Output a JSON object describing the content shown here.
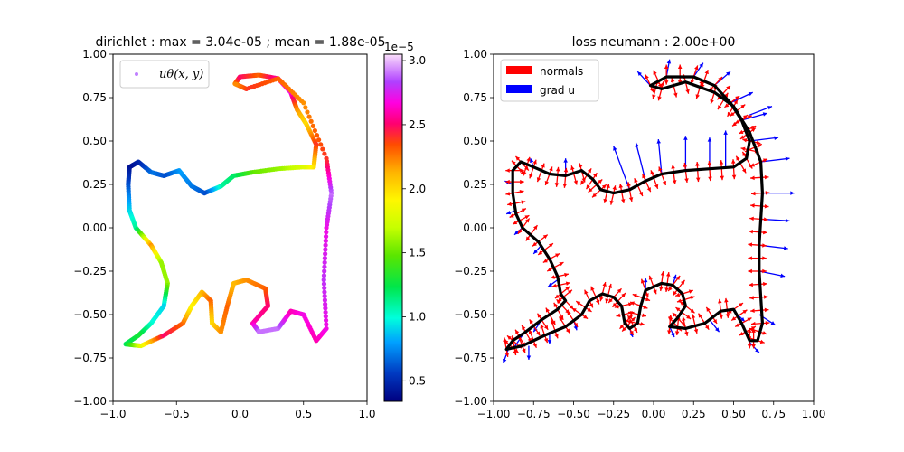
{
  "chart_data": [
    {
      "type": "scatter",
      "title": "dirichlet : max = 3.04e-05 ; mean = 1.88e-05",
      "xlim": [
        -1,
        1
      ],
      "ylim": [
        -1,
        1
      ],
      "xticks": [
        "−1.0",
        "−0.5",
        "0.0",
        "0.5",
        "1.0"
      ],
      "yticks": [
        "1.00",
        "0.75",
        "0.50",
        "0.25",
        "0.00",
        "−0.25",
        "−0.50",
        "−0.75",
        "−1.00"
      ],
      "grid": false,
      "legend": {
        "placement": "top-left",
        "entries": [
          "uθ(x, y)"
        ]
      },
      "colormap": "gist_ncar-like (navy → blue → cyan → green → yellow → orange → red → magenta → violet → pink)",
      "colorbar": {
        "range": [
          3.4e-06,
          3.05e-05
        ],
        "ticks": [
          "0.5",
          "1.0",
          "1.5",
          "2.0",
          "2.5",
          "3.0"
        ],
        "exponent_label": "1e−5"
      },
      "series": [
        {
          "name": "uθ(x, y)",
          "points": [
            [
              -0.04,
              0.83,
              2.2
            ],
            [
              0.0,
              0.87,
              2.5
            ],
            [
              0.15,
              0.88,
              2.3
            ],
            [
              0.3,
              0.86,
              2.6
            ],
            [
              0.4,
              0.78,
              2.7
            ],
            [
              0.45,
              0.68,
              2.2
            ],
            [
              0.52,
              0.6,
              2.0
            ],
            [
              0.6,
              0.48,
              2.4
            ],
            [
              0.58,
              0.35,
              2.0
            ],
            [
              0.5,
              0.35,
              1.8
            ],
            [
              0.3,
              0.34,
              1.6
            ],
            [
              0.1,
              0.32,
              1.5
            ],
            [
              -0.05,
              0.3,
              1.2
            ],
            [
              -0.15,
              0.24,
              1.1
            ],
            [
              -0.28,
              0.2,
              0.6
            ],
            [
              -0.38,
              0.24,
              0.7
            ],
            [
              -0.48,
              0.33,
              0.8
            ],
            [
              -0.6,
              0.3,
              0.6
            ],
            [
              -0.7,
              0.32,
              0.7
            ],
            [
              -0.8,
              0.38,
              0.5
            ],
            [
              -0.87,
              0.35,
              0.4
            ],
            [
              -0.88,
              0.25,
              0.6
            ],
            [
              -0.87,
              0.1,
              0.9
            ],
            [
              -0.82,
              0.0,
              1.1
            ],
            [
              -0.7,
              -0.1,
              2.2
            ],
            [
              -0.62,
              -0.2,
              1.6
            ],
            [
              -0.57,
              -0.32,
              1.6
            ],
            [
              -0.6,
              -0.45,
              0.9
            ],
            [
              -0.7,
              -0.55,
              1.0
            ],
            [
              -0.8,
              -0.62,
              1.3
            ],
            [
              -0.9,
              -0.67,
              1.2
            ],
            [
              -0.78,
              -0.68,
              1.8
            ],
            [
              -0.6,
              -0.62,
              2.5
            ],
            [
              -0.45,
              -0.55,
              2.3
            ],
            [
              -0.38,
              -0.45,
              1.9
            ],
            [
              -0.3,
              -0.37,
              2.1
            ],
            [
              -0.23,
              -0.42,
              2.3
            ],
            [
              -0.22,
              -0.55,
              2.0
            ],
            [
              -0.15,
              -0.6,
              2.2
            ],
            [
              -0.1,
              -0.45,
              2.3
            ],
            [
              -0.05,
              -0.32,
              2.1
            ],
            [
              0.05,
              -0.3,
              2.2
            ],
            [
              0.2,
              -0.35,
              2.3
            ],
            [
              0.22,
              -0.45,
              2.5
            ],
            [
              0.1,
              -0.55,
              2.6
            ],
            [
              0.15,
              -0.6,
              2.9
            ],
            [
              0.3,
              -0.58,
              2.9
            ],
            [
              0.4,
              -0.48,
              2.6
            ],
            [
              0.5,
              -0.5,
              2.7
            ],
            [
              0.6,
              -0.65,
              2.6
            ],
            [
              0.68,
              -0.58,
              2.7
            ],
            [
              0.66,
              -0.3,
              2.8
            ],
            [
              0.68,
              0.0,
              2.7
            ],
            [
              0.72,
              0.2,
              2.9
            ],
            [
              0.68,
              0.4,
              2.4
            ],
            [
              0.5,
              0.72,
              2.2
            ],
            [
              0.3,
              0.86,
              2.3
            ],
            [
              0.05,
              0.8,
              2.4
            ]
          ]
        }
      ]
    },
    {
      "type": "quiver",
      "title": "loss neumann : 2.00e+00",
      "xlim": [
        -1,
        1
      ],
      "ylim": [
        -1,
        1
      ],
      "xticks": [
        "−1.00",
        "−0.75",
        "−0.50",
        "−0.25",
        "0.00",
        "0.25",
        "0.50",
        "0.75",
        "1.00"
      ],
      "yticks": [
        "1.00",
        "0.75",
        "0.50",
        "0.25",
        "0.00",
        "−0.25",
        "−0.50",
        "−0.75",
        "−1.00"
      ],
      "grid": false,
      "legend": {
        "placement": "top-left",
        "entries": [
          "normals",
          "grad u"
        ]
      },
      "colors": {
        "normals": "#ff0000",
        "grad_u": "#0000ff",
        "boundary": "#000000"
      },
      "boundary": [
        [
          -0.02,
          0.82
        ],
        [
          0.08,
          0.87
        ],
        [
          0.25,
          0.87
        ],
        [
          0.38,
          0.82
        ],
        [
          0.48,
          0.72
        ],
        [
          0.55,
          0.62
        ],
        [
          0.6,
          0.5
        ],
        [
          0.58,
          0.4
        ],
        [
          0.5,
          0.35
        ],
        [
          0.35,
          0.34
        ],
        [
          0.2,
          0.33
        ],
        [
          0.05,
          0.31
        ],
        [
          -0.05,
          0.27
        ],
        [
          -0.15,
          0.22
        ],
        [
          -0.25,
          0.2
        ],
        [
          -0.33,
          0.22
        ],
        [
          -0.38,
          0.28
        ],
        [
          -0.45,
          0.33
        ],
        [
          -0.55,
          0.3
        ],
        [
          -0.65,
          0.31
        ],
        [
          -0.75,
          0.35
        ],
        [
          -0.83,
          0.38
        ],
        [
          -0.88,
          0.33
        ],
        [
          -0.88,
          0.2
        ],
        [
          -0.86,
          0.08
        ],
        [
          -0.82,
          0.0
        ],
        [
          -0.72,
          -0.08
        ],
        [
          -0.65,
          -0.18
        ],
        [
          -0.6,
          -0.28
        ],
        [
          -0.58,
          -0.38
        ],
        [
          -0.55,
          -0.42
        ],
        [
          -0.6,
          -0.47
        ],
        [
          -0.7,
          -0.53
        ],
        [
          -0.8,
          -0.6
        ],
        [
          -0.88,
          -0.65
        ],
        [
          -0.92,
          -0.7
        ],
        [
          -0.82,
          -0.68
        ],
        [
          -0.68,
          -0.62
        ],
        [
          -0.55,
          -0.57
        ],
        [
          -0.45,
          -0.5
        ],
        [
          -0.4,
          -0.42
        ],
        [
          -0.32,
          -0.38
        ],
        [
          -0.25,
          -0.4
        ],
        [
          -0.2,
          -0.45
        ],
        [
          -0.18,
          -0.55
        ],
        [
          -0.15,
          -0.58
        ],
        [
          -0.1,
          -0.55
        ],
        [
          -0.08,
          -0.45
        ],
        [
          -0.05,
          -0.36
        ],
        [
          0.05,
          -0.32
        ],
        [
          0.12,
          -0.33
        ],
        [
          0.18,
          -0.38
        ],
        [
          0.2,
          -0.45
        ],
        [
          0.15,
          -0.52
        ],
        [
          0.1,
          -0.57
        ],
        [
          0.2,
          -0.58
        ],
        [
          0.32,
          -0.55
        ],
        [
          0.42,
          -0.48
        ],
        [
          0.5,
          -0.47
        ],
        [
          0.55,
          -0.55
        ],
        [
          0.6,
          -0.65
        ],
        [
          0.65,
          -0.65
        ],
        [
          0.68,
          -0.55
        ],
        [
          0.67,
          -0.4
        ],
        [
          0.66,
          -0.25
        ],
        [
          0.66,
          -0.1
        ],
        [
          0.67,
          0.05
        ],
        [
          0.68,
          0.2
        ],
        [
          0.67,
          0.38
        ],
        [
          0.6,
          0.55
        ],
        [
          0.5,
          0.7
        ],
        [
          0.38,
          0.78
        ],
        [
          0.2,
          0.84
        ],
        [
          0.05,
          0.8
        ]
      ],
      "normals_scale": 0.1,
      "grad_u_vectors": [
        [
          -0.02,
          0.82,
          -0.08,
          0.08
        ],
        [
          0.08,
          0.87,
          0.02,
          0.1
        ],
        [
          0.25,
          0.87,
          0.06,
          0.08
        ],
        [
          0.38,
          0.82,
          0.1,
          0.08
        ],
        [
          0.48,
          0.72,
          0.14,
          0.06
        ],
        [
          0.55,
          0.62,
          0.16,
          0.04
        ],
        [
          0.6,
          0.5,
          0.18,
          0.02
        ],
        [
          0.66,
          -0.25,
          0.16,
          -0.03
        ],
        [
          0.66,
          -0.1,
          0.18,
          -0.02
        ],
        [
          0.67,
          0.05,
          0.18,
          -0.01
        ],
        [
          0.68,
          0.2,
          0.2,
          0.0
        ],
        [
          0.67,
          0.38,
          0.18,
          0.02
        ],
        [
          0.6,
          0.65,
          0.14,
          0.05
        ],
        [
          0.35,
          0.34,
          0.0,
          0.18
        ],
        [
          0.2,
          0.33,
          0.0,
          0.2
        ],
        [
          0.05,
          0.31,
          -0.02,
          0.2
        ],
        [
          -0.05,
          0.27,
          -0.06,
          0.22
        ],
        [
          -0.15,
          0.22,
          -0.1,
          0.25
        ],
        [
          0.45,
          0.34,
          0.0,
          0.22
        ],
        [
          -0.55,
          0.3,
          0.0,
          0.1
        ],
        [
          -0.75,
          0.35,
          -0.02,
          0.05
        ],
        [
          -0.88,
          0.25,
          -0.05,
          0.02
        ],
        [
          -0.86,
          0.1,
          -0.06,
          -0.02
        ],
        [
          -0.82,
          0.0,
          -0.05,
          -0.04
        ],
        [
          -0.7,
          -0.1,
          -0.05,
          -0.05
        ],
        [
          -0.6,
          -0.3,
          -0.06,
          -0.04
        ],
        [
          -0.7,
          -0.53,
          -0.05,
          -0.07
        ],
        [
          -0.82,
          -0.62,
          -0.06,
          -0.08
        ],
        [
          -0.9,
          -0.68,
          -0.04,
          -0.1
        ],
        [
          -0.78,
          -0.68,
          0.0,
          -0.08
        ],
        [
          -0.65,
          -0.6,
          0.0,
          -0.07
        ],
        [
          -0.5,
          -0.53,
          0.02,
          -0.06
        ],
        [
          -0.42,
          -0.45,
          0.03,
          0.04
        ],
        [
          -0.15,
          -0.58,
          0.02,
          -0.05
        ],
        [
          0.1,
          -0.57,
          0.03,
          -0.06
        ],
        [
          0.35,
          -0.53,
          0.06,
          -0.07
        ],
        [
          0.5,
          -0.48,
          0.07,
          -0.06
        ],
        [
          0.6,
          -0.66,
          0.06,
          -0.06
        ],
        [
          0.66,
          -0.5,
          0.1,
          -0.06
        ],
        [
          -0.05,
          -0.35,
          0.0,
          0.06
        ],
        [
          0.12,
          -0.33,
          0.02,
          0.06
        ]
      ]
    }
  ]
}
